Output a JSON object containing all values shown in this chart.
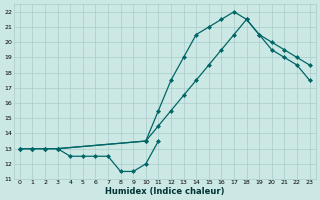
{
  "xlabel": "Humidex (Indice chaleur)",
  "background_color": "#cce8e4",
  "grid_color": "#aacccc",
  "line_color": "#006666",
  "xlim": [
    -0.5,
    23.5
  ],
  "ylim": [
    11,
    22.5
  ],
  "yticks": [
    11,
    12,
    13,
    14,
    15,
    16,
    17,
    18,
    19,
    20,
    21,
    22
  ],
  "xticks": [
    0,
    1,
    2,
    3,
    4,
    5,
    6,
    7,
    8,
    9,
    10,
    11,
    12,
    13,
    14,
    15,
    16,
    17,
    18,
    19,
    20,
    21,
    22,
    23
  ],
  "line1_x": [
    0,
    1,
    2,
    3,
    10,
    11,
    12,
    13,
    14,
    15,
    16,
    17,
    18,
    19,
    20,
    21,
    22,
    23
  ],
  "line1_y": [
    13.0,
    13.0,
    13.0,
    13.0,
    13.5,
    15.5,
    17.5,
    19.0,
    20.5,
    21.0,
    21.5,
    22.0,
    21.5,
    20.5,
    20.0,
    19.5,
    19.0,
    18.5
  ],
  "line2_x": [
    0,
    1,
    2,
    3,
    10,
    11,
    12,
    13,
    14,
    15,
    16,
    17,
    18,
    19,
    20,
    21,
    22,
    23
  ],
  "line2_y": [
    13.0,
    13.0,
    13.0,
    13.0,
    13.5,
    14.5,
    15.5,
    16.5,
    17.5,
    18.5,
    19.5,
    20.5,
    21.5,
    20.5,
    19.5,
    19.0,
    18.5,
    17.5
  ],
  "line3_x": [
    0,
    1,
    2,
    3,
    4,
    5,
    6,
    7,
    8,
    9,
    10,
    11
  ],
  "line3_y": [
    13.0,
    13.0,
    13.0,
    13.0,
    12.5,
    12.5,
    12.5,
    12.5,
    11.5,
    11.5,
    12.0,
    13.5
  ]
}
